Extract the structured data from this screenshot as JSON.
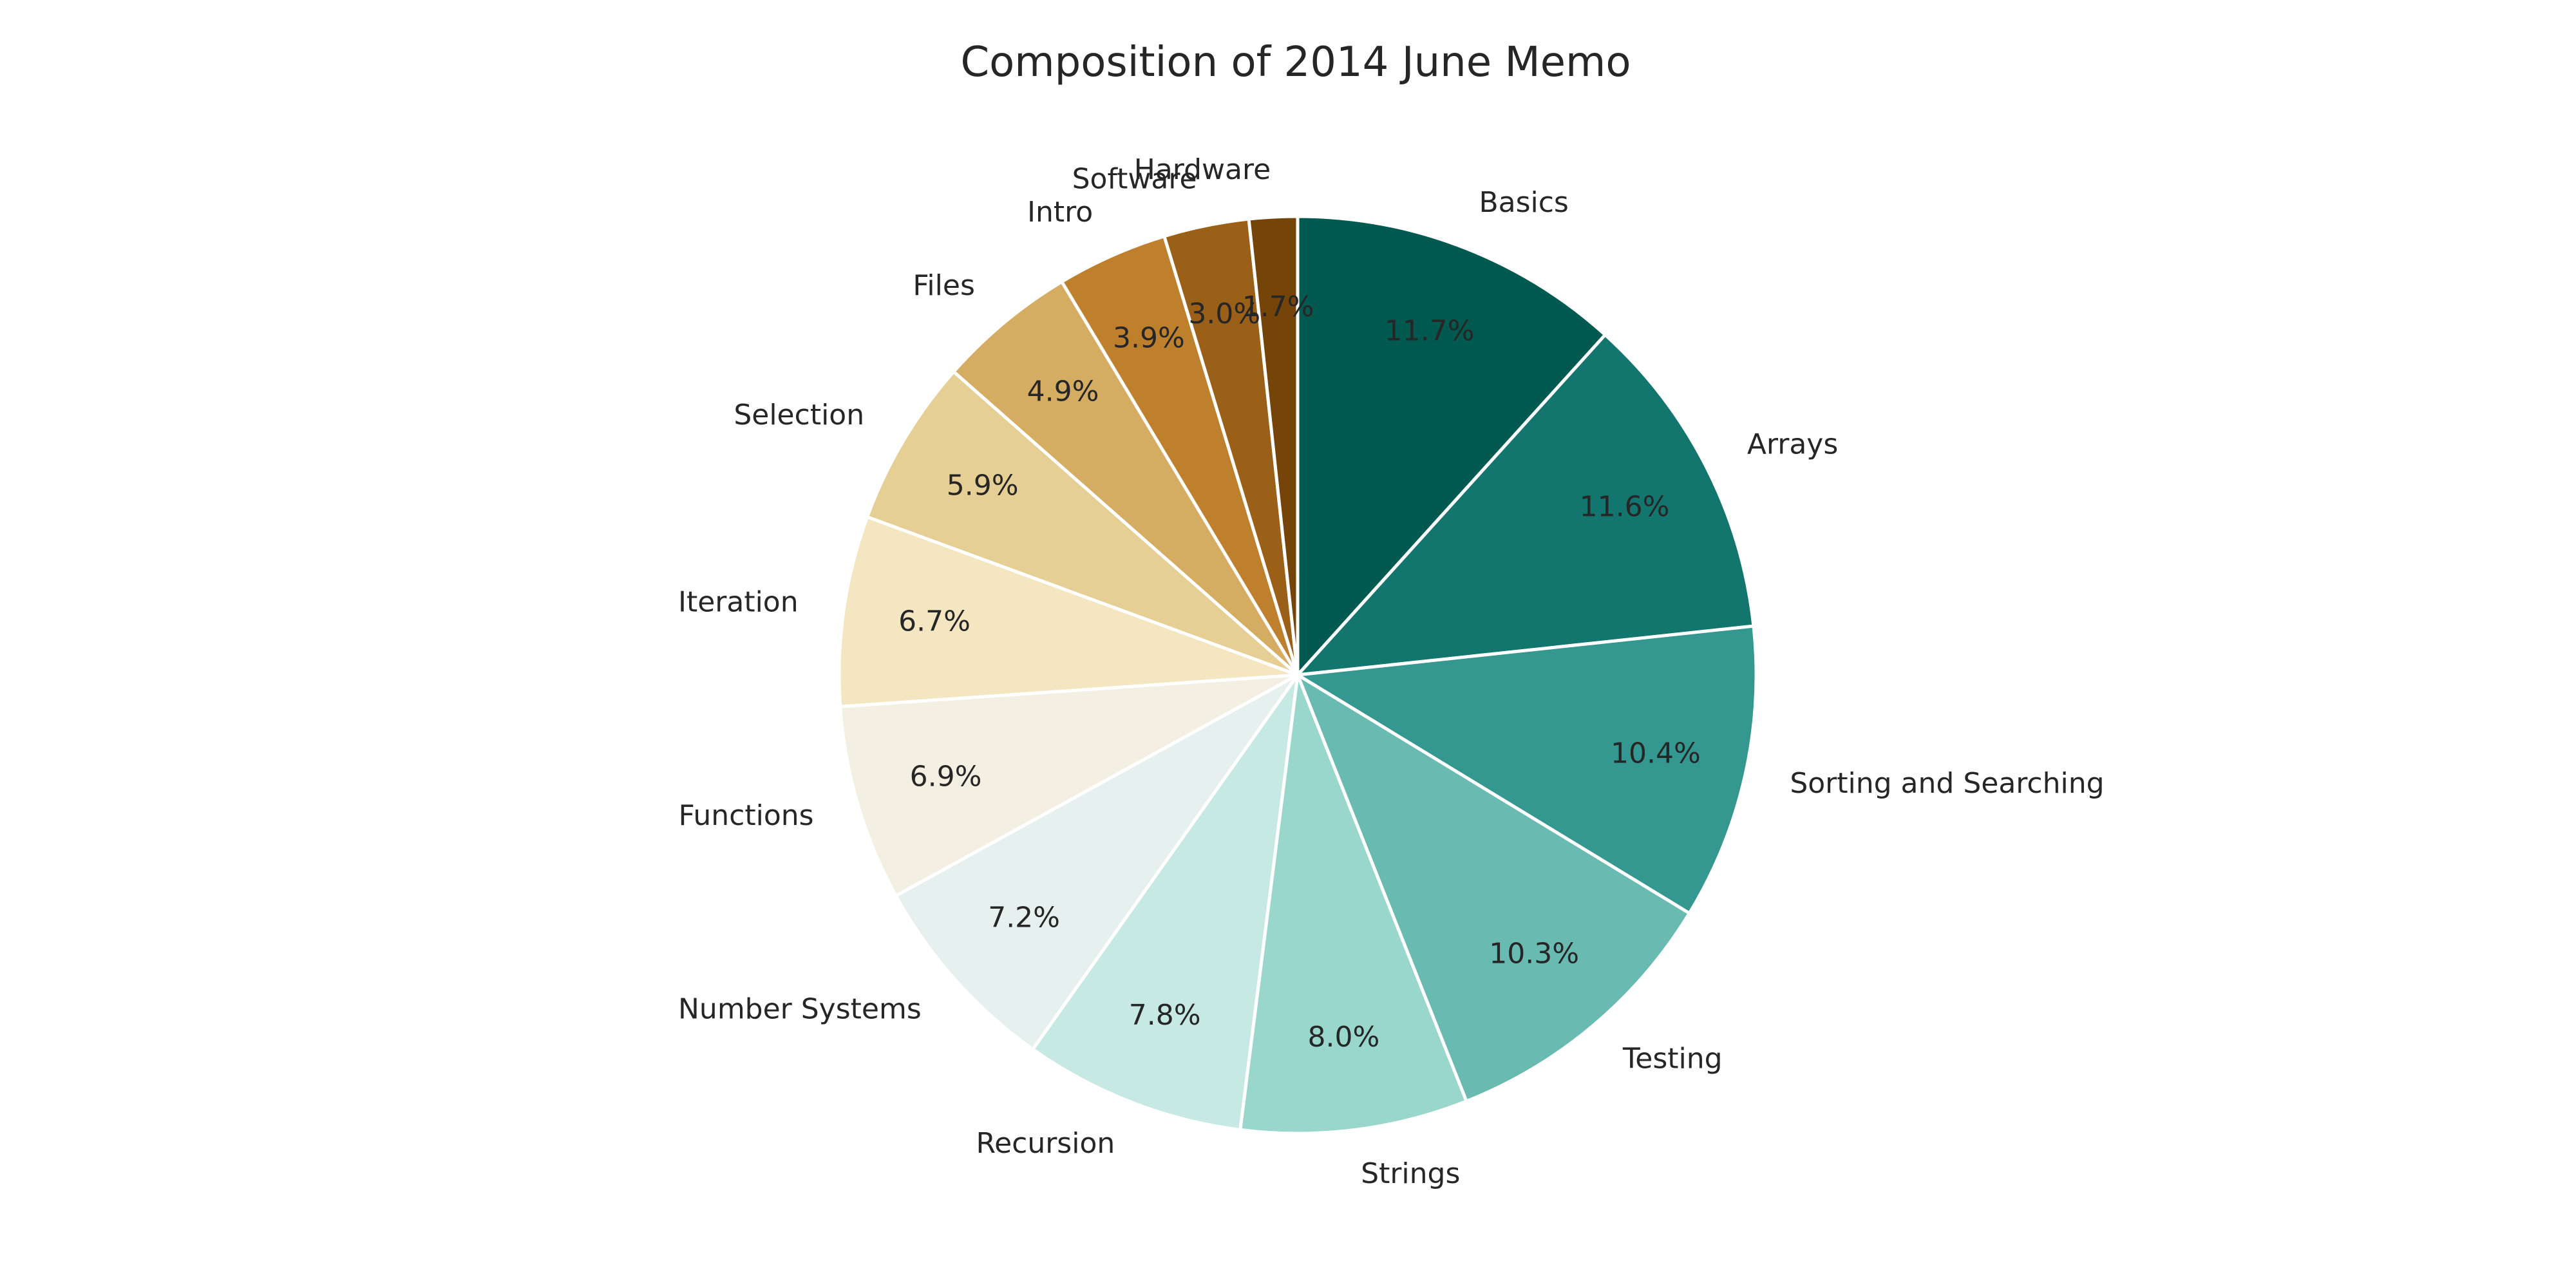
{
  "chart_data": {
    "type": "pie",
    "title": "Composition of 2014 June Memo",
    "start_angle_deg": 90,
    "direction": "clockwise",
    "legend": "none",
    "slices": [
      {
        "label": "Basics",
        "value": 11.7,
        "pct_label": "11.7%",
        "color": "#01594f"
      },
      {
        "label": "Arrays",
        "value": 11.6,
        "pct_label": "11.6%",
        "color": "#13766e"
      },
      {
        "label": "Sorting and Searching",
        "value": 10.4,
        "pct_label": "10.4%",
        "color": "#359890"
      },
      {
        "label": "Testing",
        "value": 10.3,
        "pct_label": "10.3%",
        "color": "#69bab0"
      },
      {
        "label": "Strings",
        "value": 8.0,
        "pct_label": "8.0%",
        "color": "#99d7cd"
      },
      {
        "label": "Recursion",
        "value": 7.8,
        "pct_label": "7.8%",
        "color": "#c7e9e3"
      },
      {
        "label": "Number Systems",
        "value": 7.2,
        "pct_label": "7.2%",
        "color": "#e6f0ee"
      },
      {
        "label": "Functions",
        "value": 6.9,
        "pct_label": "6.9%",
        "color": "#f3efe3"
      },
      {
        "label": "Iteration",
        "value": 6.7,
        "pct_label": "6.7%",
        "color": "#f5e6c2"
      },
      {
        "label": "Selection",
        "value": 5.9,
        "pct_label": "5.9%",
        "color": "#e6cf95"
      },
      {
        "label": "Files",
        "value": 4.9,
        "pct_label": "4.9%",
        "color": "#d4ac62"
      },
      {
        "label": "Intro",
        "value": 3.9,
        "pct_label": "3.9%",
        "color": "#bf802e"
      },
      {
        "label": "Software",
        "value": 3.0,
        "pct_label": "3.0%",
        "color": "#9b6017"
      },
      {
        "label": "Hardware",
        "value": 1.7,
        "pct_label": "1.7%",
        "color": "#754408"
      }
    ]
  }
}
